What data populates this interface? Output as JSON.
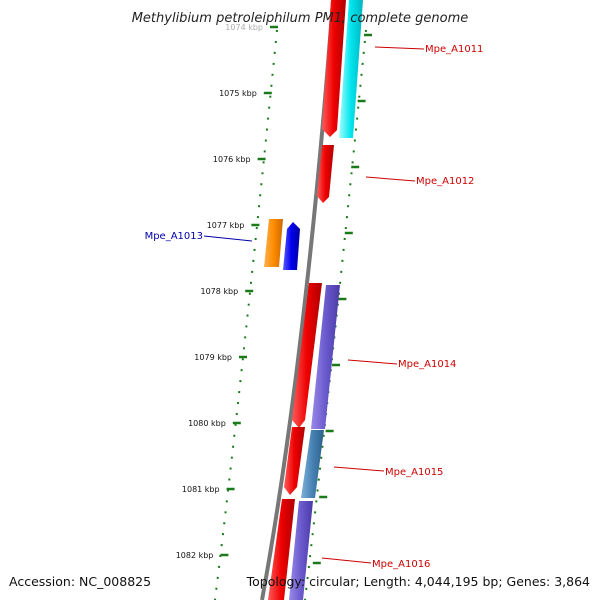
{
  "title": "Methylibium petroleiphilum PM1, complete genome",
  "footer": {
    "accession": "Accession: NC_008825",
    "topology": "Topology: circular; Length: 4,044,195 bp; Genes: 3,864"
  },
  "ticks": [
    "1074 kbp",
    "1075 kbp",
    "1076 kbp",
    "1077 kbp",
    "1078 kbp",
    "1079 kbp",
    "1080 kbp",
    "1081 kbp",
    "1082 kbp"
  ],
  "genes": [
    {
      "id": "Mpe_A1011",
      "color": "#cc0000"
    },
    {
      "id": "Mpe_A1012",
      "color": "#cc0000"
    },
    {
      "id": "Mpe_A1013",
      "color": "#0000aa"
    },
    {
      "id": "Mpe_A1014",
      "color": "#cc0000"
    },
    {
      "id": "Mpe_A1015",
      "color": "#cc0000"
    },
    {
      "id": "Mpe_A1016",
      "color": "#cc0000"
    }
  ],
  "colors": {
    "backbone": "#777777",
    "ruler": "#1a7a1a",
    "cds": "#ee0000",
    "cyan_feature": "#00e5ee",
    "purple_feature": "#6a5acd",
    "steelblue_feature": "#4682b4",
    "orange_feature": "#ff8c00",
    "blue_feature": "#0000ee"
  }
}
